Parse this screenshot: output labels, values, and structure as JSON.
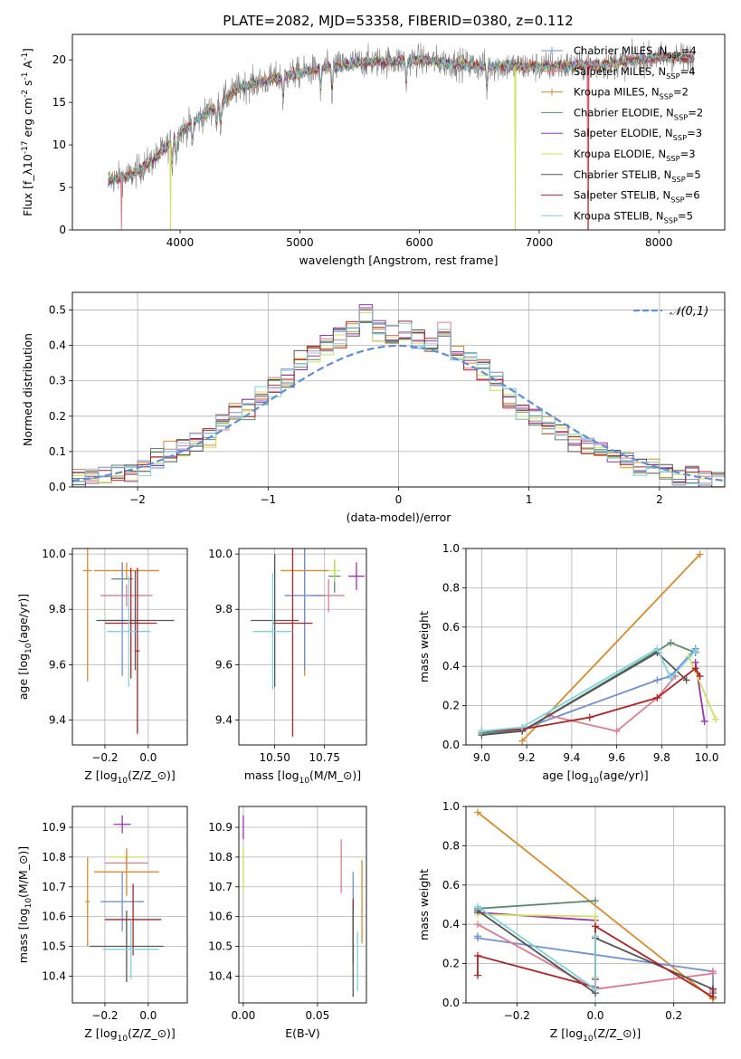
{
  "chart_data": [
    {
      "panel": "spectrum",
      "type": "line",
      "title": "PLATE=2082, MJD=53358, FIBERID=0380, z=0.112",
      "xlabel": "wavelength [Angstrom, rest frame]",
      "ylabel": "Flux [f_λ10^{-17} erg cm^{-2} s^{-1} A^{-1}]",
      "xlim": [
        3100,
        8550
      ],
      "ylim": [
        0,
        23
      ],
      "xticks": [
        4000,
        5000,
        6000,
        7000,
        8000
      ],
      "yticks": [
        0,
        5,
        10,
        15,
        20
      ],
      "legend_position": "upper right",
      "series": [
        {
          "name": "Chabrier MILES, N_{SSP}=4",
          "color": "#6f8fd6"
        },
        {
          "name": "Salpeter MILES, N_{SSP}=4",
          "color": "#e07b8f"
        },
        {
          "name": "Kroupa MILES, N_{SSP}=2",
          "color": "#d98a2b"
        },
        {
          "name": "Chabrier ELODIE, N_{SSP}=2",
          "color": "#5a8a6a"
        },
        {
          "name": "Salpeter ELODIE, N_{SSP}=3",
          "color": "#9b30b0"
        },
        {
          "name": "Kroupa ELODIE, N_{SSP}=3",
          "color": "#cfe05a"
        },
        {
          "name": "Chabrier STELIB, N_{SSP}=5",
          "color": "#555555"
        },
        {
          "name": "Salpeter STELIB, N_{SSP}=6",
          "color": "#b22222"
        },
        {
          "name": "Kroupa STELIB, N_{SSP}=5",
          "color": "#7fd3e0"
        }
      ],
      "continuum": {
        "x": [
          3400,
          3600,
          3800,
          4000,
          4200,
          4500,
          5000,
          5500,
          6000,
          6500,
          7000,
          7500,
          8000,
          8300
        ],
        "y": [
          5.8,
          6.5,
          8.5,
          11.5,
          13.5,
          16.8,
          18.5,
          19.7,
          20.0,
          19.3,
          19.2,
          19.4,
          20.3,
          20.2
        ]
      },
      "data_range": [
        3400,
        8300
      ],
      "dropouts": [
        {
          "x": 3510,
          "color": "#e07b8f"
        },
        {
          "x": 3920,
          "color": "#cfe05a"
        },
        {
          "x": 6800,
          "color": "#cfe05a"
        },
        {
          "x": 7410,
          "color": "#b22222"
        },
        {
          "x": 7405,
          "color": "#e07b8f"
        }
      ]
    },
    {
      "panel": "residuals",
      "type": "histogram",
      "xlabel": "(data-model)/error",
      "ylabel": "Normed distribution",
      "xlim": [
        -2.5,
        2.5
      ],
      "ylim": [
        0,
        0.55
      ],
      "xticks": [
        -2,
        -1,
        0,
        1,
        2
      ],
      "yticks": [
        0,
        0.1,
        0.2,
        0.3,
        0.4,
        0.5
      ],
      "gaussian_label": "𝒩(0,1)",
      "gaussian_color": "#5b8fd9",
      "bin_centers": [
        -2.45,
        -2.35,
        -2.25,
        -2.15,
        -2.05,
        -1.95,
        -1.85,
        -1.75,
        -1.65,
        -1.55,
        -1.45,
        -1.35,
        -1.25,
        -1.15,
        -1.05,
        -0.95,
        -0.85,
        -0.75,
        -0.65,
        -0.55,
        -0.45,
        -0.35,
        -0.25,
        -0.15,
        -0.05,
        0.05,
        0.15,
        0.25,
        0.35,
        0.45,
        0.55,
        0.65,
        0.75,
        0.85,
        0.95,
        1.05,
        1.15,
        1.25,
        1.35,
        1.45,
        1.55,
        1.65,
        1.75,
        1.85,
        1.95,
        2.05,
        2.15,
        2.25,
        2.35,
        2.45
      ],
      "values": [
        0.02,
        0.025,
        0.035,
        0.035,
        0.045,
        0.06,
        0.08,
        0.1,
        0.11,
        0.13,
        0.14,
        0.18,
        0.21,
        0.22,
        0.26,
        0.28,
        0.31,
        0.36,
        0.38,
        0.4,
        0.42,
        0.45,
        0.49,
        0.44,
        0.43,
        0.44,
        0.42,
        0.4,
        0.44,
        0.38,
        0.36,
        0.33,
        0.3,
        0.25,
        0.22,
        0.2,
        0.17,
        0.15,
        0.13,
        0.11,
        0.1,
        0.09,
        0.08,
        0.06,
        0.05,
        0.04,
        0.03,
        0.03,
        0.02,
        0.02
      ]
    },
    {
      "panel": "age_vs_Z",
      "type": "errorbar",
      "xlabel": "Z [log_{10}(Z/Z_⊙)]",
      "ylabel": "age  [log_{10}(age/yr)]",
      "xlim": [
        -0.35,
        0.18
      ],
      "ylim": [
        9.31,
        10.02
      ],
      "xticks": [
        -0.2,
        0.0
      ],
      "yticks": [
        9.4,
        9.6,
        9.8,
        10.0
      ],
      "points": [
        {
          "x": -0.1,
          "y": 9.94,
          "xerr": 0.15,
          "yerr": 0.03,
          "color": "#d98a2b"
        },
        {
          "x": -0.12,
          "y": 9.91,
          "xerr": 0.05,
          "yerr": 0.06,
          "color": "#5a8a6a"
        },
        {
          "x": -0.1,
          "y": 9.85,
          "xerr": 0.12,
          "yerr": 0.04,
          "color": "#e07b8f"
        },
        {
          "x": -0.12,
          "y": 9.76,
          "xerr": 0.08,
          "yerr": 0.2,
          "color": "#6f8fd6"
        },
        {
          "x": -0.08,
          "y": 9.75,
          "xerr": 0.12,
          "yerr": 0.2,
          "color": "#b22222"
        },
        {
          "x": -0.06,
          "y": 9.76,
          "xerr": 0.18,
          "yerr": 0.18,
          "color": "#555555"
        },
        {
          "x": -0.09,
          "y": 9.72,
          "xerr": 0.1,
          "yerr": 0.2,
          "color": "#7fd3e0"
        },
        {
          "x": -0.28,
          "y": 9.94,
          "xerr": 0.02,
          "yerr": 0.4,
          "color": "#d98a2b"
        },
        {
          "x": -0.05,
          "y": 9.65,
          "xerr": 0.01,
          "yerr": 0.3,
          "color": "#b22222"
        }
      ]
    },
    {
      "panel": "age_vs_mass",
      "type": "errorbar",
      "xlabel": "mass [log_{10}(M/M_⊙)]",
      "ylabel": "",
      "xlim": [
        10.32,
        10.96
      ],
      "ylim": [
        9.31,
        10.02
      ],
      "xticks": [
        10.5,
        10.75
      ],
      "yticks": [
        9.4,
        9.6,
        9.8,
        10.0
      ],
      "points": [
        {
          "x": 10.65,
          "y": 9.94,
          "xerr": 0.12,
          "yerr": 0.38,
          "color": "#d98a2b"
        },
        {
          "x": 10.8,
          "y": 9.92,
          "xerr": 0.03,
          "yerr": 0.06,
          "color": "#5a8a6a"
        },
        {
          "x": 10.77,
          "y": 9.85,
          "xerr": 0.08,
          "yerr": 0.06,
          "color": "#e07b8f"
        },
        {
          "x": 10.65,
          "y": 9.85,
          "xerr": 0.1,
          "yerr": 0.27,
          "color": "#6f8fd6"
        },
        {
          "x": 10.59,
          "y": 9.75,
          "xerr": 0.1,
          "yerr": 0.41,
          "color": "#b22222"
        },
        {
          "x": 10.5,
          "y": 9.76,
          "xerr": 0.12,
          "yerr": 0.24,
          "color": "#555555"
        },
        {
          "x": 10.49,
          "y": 9.72,
          "xerr": 0.1,
          "yerr": 0.21,
          "color": "#7fd3e0"
        },
        {
          "x": 10.91,
          "y": 9.92,
          "xerr": 0.04,
          "yerr": 0.05,
          "color": "#9b30b0"
        },
        {
          "x": 10.8,
          "y": 9.94,
          "xerr": 0.03,
          "yerr": 0.04,
          "color": "#cfe05a"
        }
      ]
    },
    {
      "panel": "weight_vs_age",
      "type": "line",
      "xlabel": "age  [log_{10}(age/yr)]",
      "ylabel": "mass weight",
      "xlim": [
        8.93,
        10.08
      ],
      "ylim": [
        0,
        1
      ],
      "xticks": [
        9.0,
        9.2,
        9.4,
        9.6,
        9.8,
        10.0
      ],
      "yticks": [
        0,
        0.2,
        0.4,
        0.6,
        0.8,
        1.0
      ],
      "series": [
        {
          "color": "#d98a2b",
          "x": [
            9.18,
            9.97
          ],
          "y": [
            0.02,
            0.97
          ]
        },
        {
          "color": "#6f8fd6",
          "x": [
            9.0,
            9.18,
            9.78,
            9.84,
            9.95,
            9.95
          ],
          "y": [
            0.06,
            0.08,
            0.33,
            0.35,
            0.49,
            0.48
          ]
        },
        {
          "color": "#e07b8f",
          "x": [
            9.3,
            9.6,
            9.78,
            9.86
          ],
          "y": [
            0.15,
            0.07,
            0.24,
            0.35
          ]
        },
        {
          "color": "#5a8a6a",
          "x": [
            9.0,
            9.18,
            9.84,
            9.95
          ],
          "y": [
            0.06,
            0.07,
            0.52,
            0.47
          ]
        },
        {
          "color": "#9b30b0",
          "x": [
            9.95,
            9.99
          ],
          "y": [
            0.42,
            0.12
          ]
        },
        {
          "color": "#cfe05a",
          "x": [
            9.92,
            10.04
          ],
          "y": [
            0.45,
            0.13
          ]
        },
        {
          "color": "#555555",
          "x": [
            9.0,
            9.18,
            9.78,
            9.91
          ],
          "y": [
            0.05,
            0.07,
            0.47,
            0.33
          ]
        },
        {
          "color": "#b22222",
          "x": [
            9.0,
            9.18,
            9.48,
            9.78,
            9.95,
            9.97
          ],
          "y": [
            0.07,
            0.08,
            0.14,
            0.24,
            0.39,
            0.35
          ]
        },
        {
          "color": "#7fd3e0",
          "x": [
            9.0,
            9.18,
            9.78,
            9.84,
            9.95
          ],
          "y": [
            0.07,
            0.09,
            0.49,
            0.34,
            0.48
          ]
        }
      ]
    },
    {
      "panel": "mass_vs_Z",
      "type": "errorbar",
      "xlabel": "Z [log_{10}(Z/Z_⊙)]",
      "ylabel": "mass [log_{10}(M/M_⊙)]",
      "xlim": [
        -0.35,
        0.18
      ],
      "ylim": [
        10.31,
        10.97
      ],
      "xticks": [
        -0.2,
        0.0
      ],
      "yticks": [
        10.4,
        10.5,
        10.6,
        10.7,
        10.8,
        10.9
      ],
      "points": [
        {
          "x": -0.12,
          "y": 10.91,
          "xerr": 0.04,
          "yerr": 0.03,
          "color": "#9b30b0"
        },
        {
          "x": -0.1,
          "y": 10.8,
          "xerr": 0.08,
          "yerr": 0.02,
          "color": "#cfe05a"
        },
        {
          "x": -0.1,
          "y": 10.78,
          "xerr": 0.1,
          "yerr": 0.02,
          "color": "#e07b8f"
        },
        {
          "x": -0.1,
          "y": 10.75,
          "xerr": 0.15,
          "yerr": 0.08,
          "color": "#d98a2b"
        },
        {
          "x": -0.12,
          "y": 10.65,
          "xerr": 0.1,
          "yerr": 0.1,
          "color": "#6f8fd6"
        },
        {
          "x": -0.07,
          "y": 10.59,
          "xerr": 0.13,
          "yerr": 0.12,
          "color": "#b22222"
        },
        {
          "x": -0.1,
          "y": 10.5,
          "xerr": 0.17,
          "yerr": 0.12,
          "color": "#555555"
        },
        {
          "x": -0.08,
          "y": 10.49,
          "xerr": 0.13,
          "yerr": 0.1,
          "color": "#7fd3e0"
        },
        {
          "x": -0.28,
          "y": 10.65,
          "xerr": 0.01,
          "yerr": 0.15,
          "color": "#d98a2b"
        }
      ]
    },
    {
      "panel": "mass_vs_EBV",
      "type": "errorbar",
      "xlabel": "E(B-V)",
      "ylabel": "",
      "xlim": [
        -0.003,
        0.083
      ],
      "ylim": [
        10.31,
        10.97
      ],
      "xticks": [
        0.0,
        0.05
      ],
      "yticks": [
        10.4,
        10.5,
        10.6,
        10.7,
        10.8,
        10.9
      ],
      "points": [
        {
          "x": 0.0,
          "y": 10.9,
          "xerr": 0.0,
          "yerr": 0.04,
          "color": "#9b30b0"
        },
        {
          "x": 0.0,
          "y": 10.76,
          "xerr": 0.0,
          "yerr": 0.07,
          "color": "#cfe05a"
        },
        {
          "x": 0.066,
          "y": 10.77,
          "xerr": 0.0,
          "yerr": 0.09,
          "color": "#e07b8f"
        },
        {
          "x": 0.08,
          "y": 10.65,
          "xerr": 0.0,
          "yerr": 0.14,
          "color": "#d98a2b"
        },
        {
          "x": 0.074,
          "y": 10.6,
          "xerr": 0.0,
          "yerr": 0.15,
          "color": "#6f8fd6"
        },
        {
          "x": 0.074,
          "y": 10.55,
          "xerr": 0.0,
          "yerr": 0.11,
          "color": "#b22222"
        },
        {
          "x": 0.074,
          "y": 10.48,
          "xerr": 0.0,
          "yerr": 0.15,
          "color": "#555555"
        },
        {
          "x": 0.077,
          "y": 10.45,
          "xerr": 0.0,
          "yerr": 0.1,
          "color": "#7fd3e0"
        }
      ]
    },
    {
      "panel": "weight_vs_Z",
      "type": "line",
      "xlabel": "Z [log_{10}(Z/Z_⊙)]",
      "ylabel": "mass weight",
      "xlim": [
        -0.33,
        0.33
      ],
      "ylim": [
        0,
        1
      ],
      "xticks": [
        -0.2,
        0.0,
        0.2
      ],
      "yticks": [
        0,
        0.2,
        0.4,
        0.6,
        0.8,
        1.0
      ],
      "series": [
        {
          "color": "#d98a2b",
          "x": [
            -0.3,
            0.3
          ],
          "y": [
            0.97,
            0.02
          ]
        },
        {
          "color": "#6f8fd6",
          "x": [
            -0.3,
            -0.3,
            0.3,
            0.3
          ],
          "y": [
            0.34,
            0.33,
            0.16,
            0.06
          ]
        },
        {
          "color": "#e07b8f",
          "x": [
            -0.3,
            0.0,
            0.3,
            0.3
          ],
          "y": [
            0.4,
            0.07,
            0.15,
            0.16
          ]
        },
        {
          "color": "#5a8a6a",
          "x": [
            -0.3,
            0.0
          ],
          "y": [
            0.48,
            0.52
          ]
        },
        {
          "color": "#9b30b0",
          "x": [
            -0.3,
            0.0,
            0.0
          ],
          "y": [
            0.46,
            0.42,
            0.12
          ]
        },
        {
          "color": "#cfe05a",
          "x": [
            -0.3,
            0.0,
            0.0
          ],
          "y": [
            0.45,
            0.44,
            0.13
          ]
        },
        {
          "color": "#555555",
          "x": [
            -0.3,
            0.0,
            0.0,
            0.3,
            0.3
          ],
          "y": [
            0.47,
            0.05,
            0.33,
            0.07,
            0.05
          ]
        },
        {
          "color": "#b22222",
          "x": [
            -0.3,
            -0.3,
            0.0,
            0.0,
            0.3,
            0.3
          ],
          "y": [
            0.14,
            0.24,
            0.08,
            0.39,
            0.03,
            0.07
          ]
        },
        {
          "color": "#7fd3e0",
          "x": [
            -0.3,
            0.0,
            0.0
          ],
          "y": [
            0.49,
            0.07,
            0.34
          ]
        }
      ]
    }
  ]
}
